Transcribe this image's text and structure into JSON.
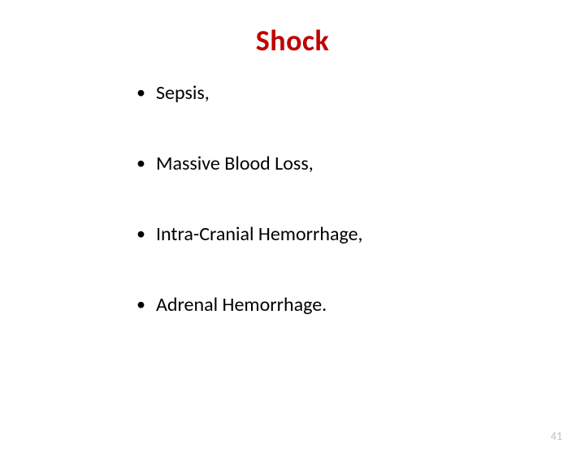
{
  "slide": {
    "title": "Shock",
    "title_color": "#c00000",
    "title_fontsize": 36,
    "title_fontweight": "bold",
    "background_color": "#ffffff",
    "bullets": [
      "Sepsis,",
      "Massive Blood Loss,",
      "Intra-Cranial Hemorrhage,",
      "Adrenal Hemorrhage."
    ],
    "bullet_fontsize": 24,
    "bullet_color": "#000000",
    "bullet_marker": "•",
    "bullet_spacing": 58,
    "page_number": "41",
    "page_number_color": "#bfbfbf",
    "page_number_fontsize": 14
  }
}
